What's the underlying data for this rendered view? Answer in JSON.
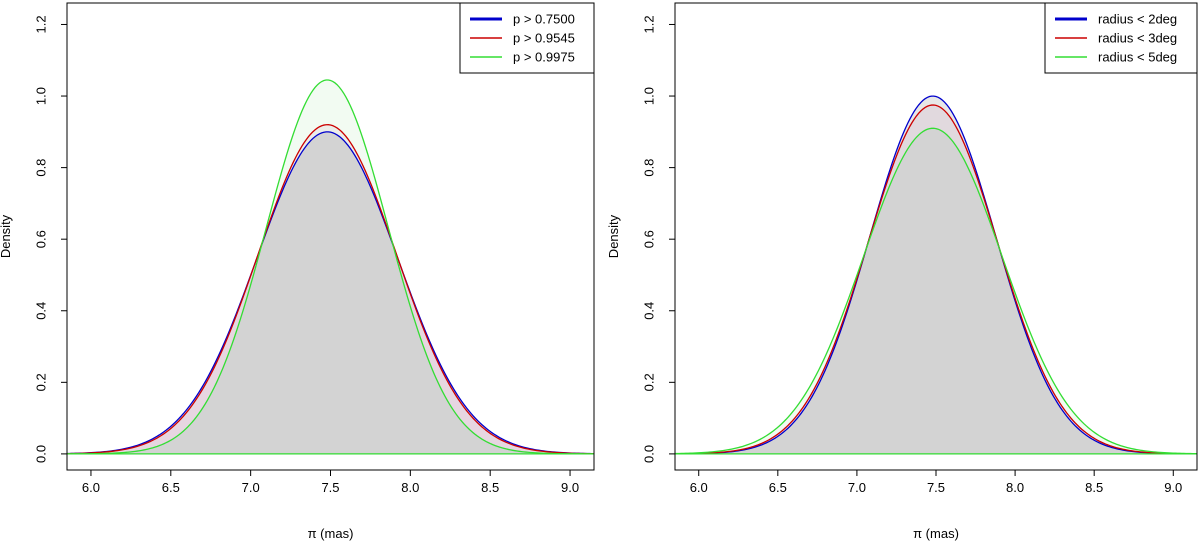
{
  "chart_data": [
    {
      "type": "area",
      "title": "",
      "xlabel": "π (mas)",
      "ylabel": "Density",
      "xlim": [
        5.85,
        9.15
      ],
      "ylim": [
        -0.045,
        1.26
      ],
      "xticks": [
        "6.0",
        "6.5",
        "7.0",
        "7.5",
        "8.0",
        "8.5",
        "9.0"
      ],
      "yticks": [
        "0.0",
        "0.2",
        "0.4",
        "0.6",
        "0.8",
        "1.0",
        "1.2"
      ],
      "legend_position": "top-right",
      "grid": false,
      "series": [
        {
          "name": "p > 0.7500",
          "color": "#0000cc",
          "fill": "#d3d3d3",
          "peak_x": 7.48,
          "peak_density": 0.9,
          "sd": 0.442
        },
        {
          "name": "p > 0.9545",
          "color": "#cc0000",
          "fill": "#e8c8dc",
          "peak_x": 7.48,
          "peak_density": 0.92,
          "sd": 0.433
        },
        {
          "name": "p > 0.9975",
          "color": "#33dd33",
          "fill": "#e8f8e8",
          "peak_x": 7.48,
          "peak_density": 1.045,
          "sd": 0.381
        }
      ]
    },
    {
      "type": "area",
      "title": "",
      "xlabel": "π (mas)",
      "ylabel": "Density",
      "xlim": [
        5.85,
        9.15
      ],
      "ylim": [
        -0.045,
        1.26
      ],
      "xticks": [
        "6.0",
        "6.5",
        "7.0",
        "7.5",
        "8.0",
        "8.5",
        "9.0"
      ],
      "yticks": [
        "0.0",
        "0.2",
        "0.4",
        "0.6",
        "0.8",
        "1.0",
        "1.2"
      ],
      "legend_position": "top-right",
      "grid": false,
      "series": [
        {
          "name": "radius < 2deg",
          "color": "#0000cc",
          "fill": "#d3d3d3",
          "peak_x": 7.48,
          "peak_density": 1.0,
          "sd": 0.399
        },
        {
          "name": "radius < 3deg",
          "color": "#cc0000",
          "fill": "#e8c8dc",
          "peak_x": 7.48,
          "peak_density": 0.975,
          "sd": 0.409
        },
        {
          "name": "radius < 5deg",
          "color": "#33dd33",
          "fill": "#e8f8e8",
          "peak_x": 7.48,
          "peak_density": 0.91,
          "sd": 0.438
        }
      ]
    }
  ]
}
